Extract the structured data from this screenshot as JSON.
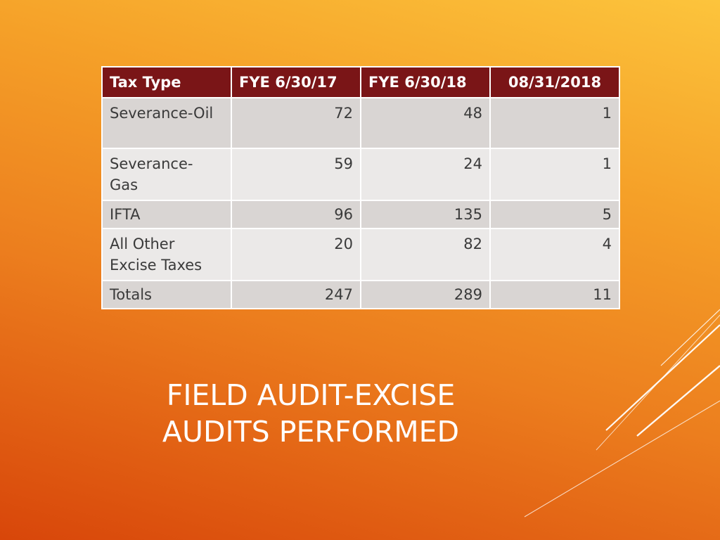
{
  "table": {
    "headers": [
      "Tax Type",
      "FYE 6/30/17",
      "FYE 6/30/18",
      "08/31/2018"
    ],
    "rows": [
      [
        "Severance-Oil",
        "72",
        "48",
        "1"
      ],
      [
        "Severance-Gas",
        "59",
        "24",
        "1"
      ],
      [
        "IFTA",
        "96",
        "135",
        "5"
      ],
      [
        "All Other Excise Taxes",
        "20",
        "82",
        "4"
      ],
      [
        "Totals",
        "247",
        "289",
        "11"
      ]
    ]
  },
  "title": {
    "line1": "FIELD AUDIT-EXCISE",
    "line2": "AUDITS PERFORMED"
  },
  "colors": {
    "header_bg": "#7a1517",
    "row_dark": "#d9d5d3",
    "row_light": "#ebe9e8"
  }
}
